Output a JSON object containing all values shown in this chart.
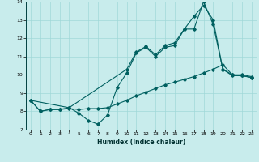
{
  "xlabel": "Humidex (Indice chaleur)",
  "background_color": "#c8ecec",
  "grid_color": "#a0d8d8",
  "line_color": "#006060",
  "xlim": [
    -0.5,
    23.5
  ],
  "ylim": [
    7,
    14
  ],
  "xticks": [
    0,
    1,
    2,
    3,
    4,
    5,
    6,
    7,
    8,
    9,
    10,
    11,
    12,
    13,
    14,
    15,
    16,
    17,
    18,
    19,
    20,
    21,
    22,
    23
  ],
  "yticks": [
    7,
    8,
    9,
    10,
    11,
    12,
    13,
    14
  ],
  "line1_x": [
    0,
    1,
    2,
    3,
    4,
    5,
    6,
    7,
    8,
    9,
    10,
    11,
    12,
    13,
    14,
    15,
    16,
    17,
    18,
    19,
    20,
    21,
    22,
    23
  ],
  "line1_y": [
    8.6,
    8.0,
    8.1,
    8.1,
    8.2,
    7.9,
    7.5,
    7.3,
    7.8,
    9.3,
    10.1,
    11.2,
    11.5,
    11.0,
    11.5,
    11.6,
    12.5,
    13.2,
    13.8,
    13.0,
    10.3,
    10.0,
    10.0,
    9.9
  ],
  "line2_x": [
    0,
    1,
    2,
    3,
    4,
    5,
    6,
    7,
    8,
    9,
    10,
    11,
    12,
    13,
    14,
    15,
    16,
    17,
    18,
    19,
    20,
    21,
    22,
    23
  ],
  "line2_y": [
    8.6,
    8.0,
    8.1,
    8.1,
    8.15,
    8.1,
    8.15,
    8.15,
    8.2,
    8.4,
    8.6,
    8.85,
    9.05,
    9.25,
    9.45,
    9.6,
    9.75,
    9.9,
    10.1,
    10.3,
    10.55,
    10.0,
    9.95,
    9.85
  ],
  "line3_x": [
    0,
    4,
    10,
    11,
    12,
    13,
    14,
    15,
    16,
    17,
    18,
    19,
    20,
    21,
    22,
    23
  ],
  "line3_y": [
    8.6,
    8.2,
    10.3,
    11.25,
    11.55,
    11.1,
    11.6,
    11.75,
    12.5,
    12.5,
    14.0,
    12.75,
    10.3,
    9.95,
    9.95,
    9.85
  ]
}
